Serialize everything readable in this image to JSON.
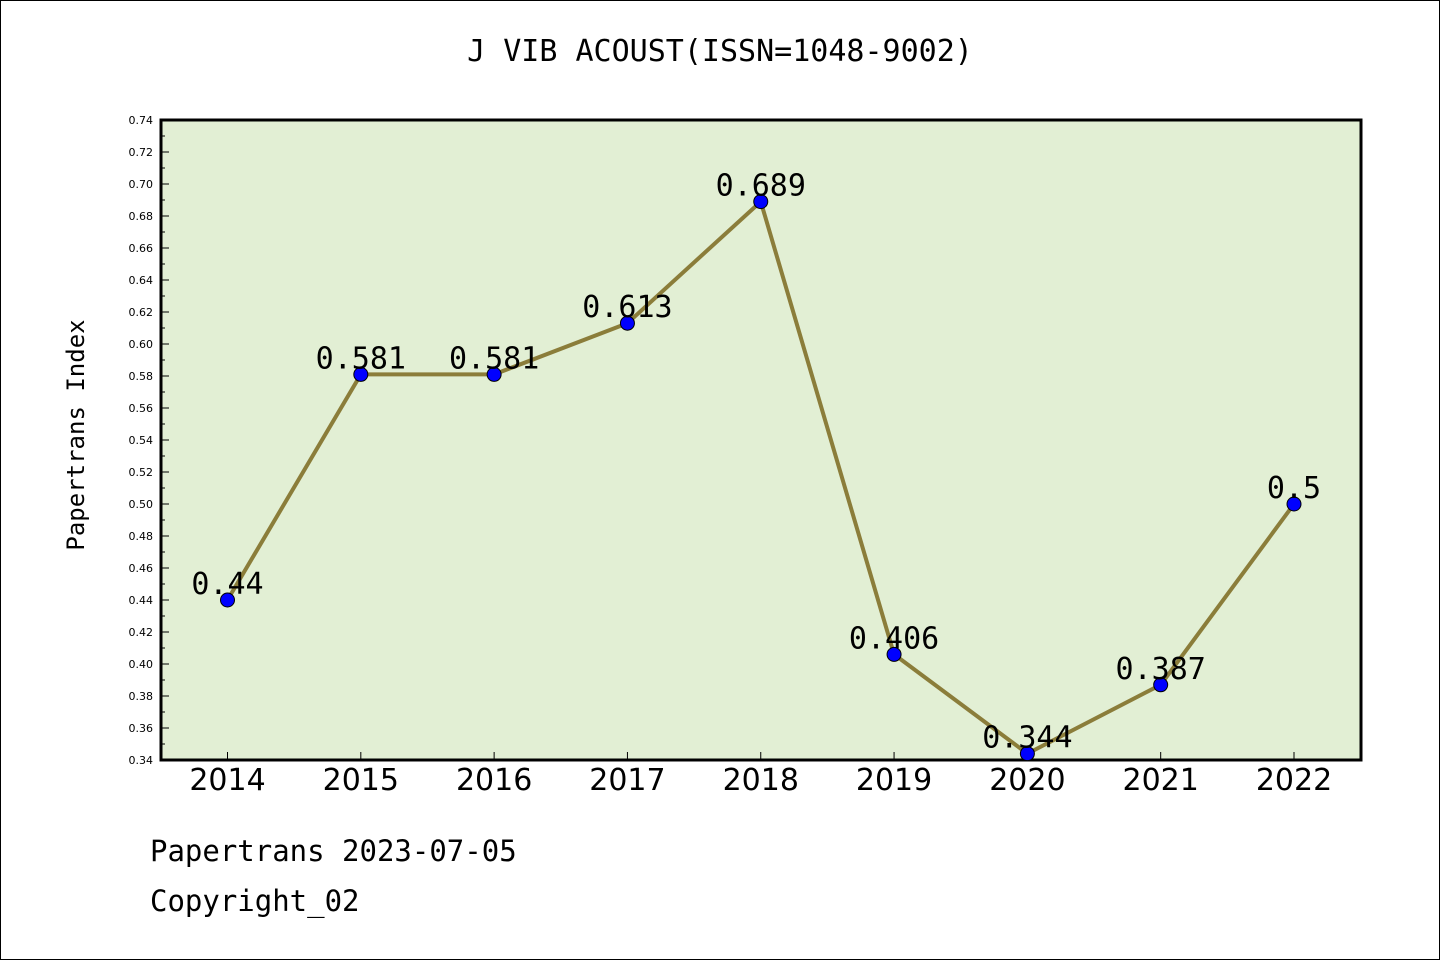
{
  "chart_data": {
    "type": "line",
    "title": "J VIB ACOUST(ISSN=1048-9002)",
    "xlabel": "",
    "ylabel": "Papertrans Index",
    "categories": [
      "2014",
      "2015",
      "2016",
      "2017",
      "2018",
      "2019",
      "2020",
      "2021",
      "2022"
    ],
    "values": [
      0.44,
      0.581,
      0.581,
      0.613,
      0.689,
      0.406,
      0.344,
      0.387,
      0.5
    ],
    "value_labels": [
      "0.44",
      "0.581",
      "0.581",
      "0.613",
      "0.689",
      "0.406",
      "0.344",
      "0.387",
      "0.5"
    ],
    "ylim": [
      0.34,
      0.74
    ],
    "yticks": [
      "0.34",
      "0.36",
      "0.38",
      "0.40",
      "0.42",
      "0.44",
      "0.46",
      "0.48",
      "0.50",
      "0.52",
      "0.54",
      "0.56",
      "0.58",
      "0.60",
      "0.62",
      "0.64",
      "0.66",
      "0.68",
      "0.70",
      "0.72",
      "0.74"
    ],
    "grid": false,
    "legend": "none"
  },
  "footer": {
    "line1": "Papertrans 2023-07-05",
    "line2": "Copyright_02"
  },
  "colors": {
    "plot_background": "#e2efd4",
    "line": "#8b7d3a",
    "marker": "#0000ff"
  }
}
